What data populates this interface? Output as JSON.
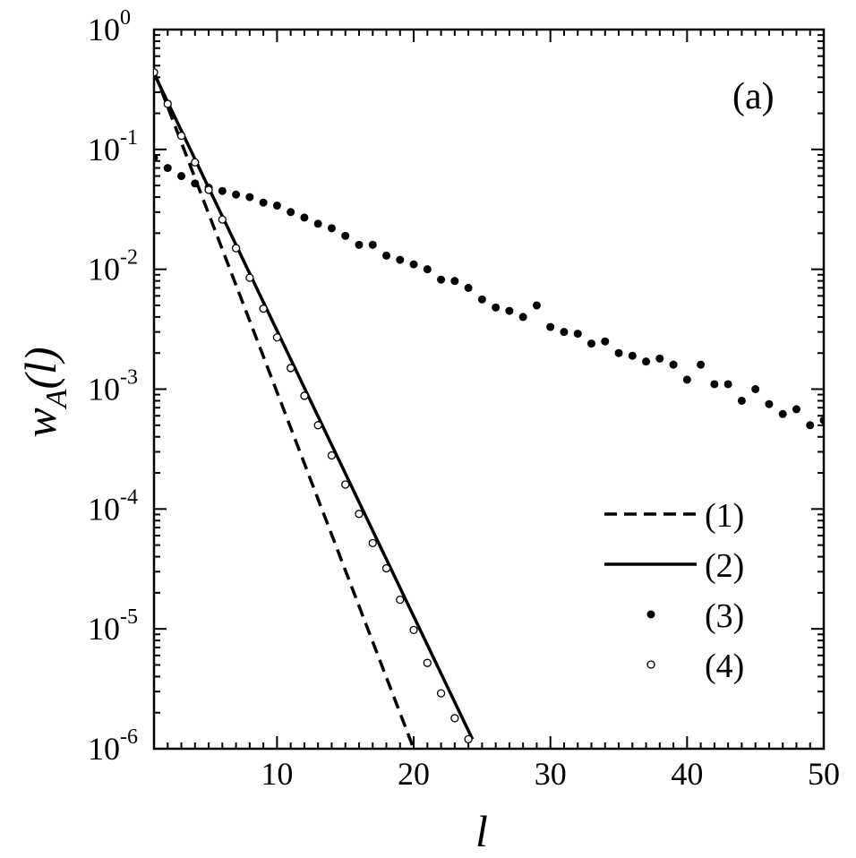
{
  "chart_data": {
    "type": "line",
    "panel_label": "(a)",
    "xlabel": "l",
    "ylabel_main": "w",
    "ylabel_sub": "A",
    "ylabel_arg": "(l)",
    "xlim": [
      1,
      50
    ],
    "ylim": [
      1e-06,
      1
    ],
    "yscale": "log",
    "x_ticks": [
      10,
      20,
      30,
      40,
      50
    ],
    "x_tick_labels": [
      "10",
      "20",
      "30",
      "40",
      "50"
    ],
    "y_ticks": [
      {
        "value": 1.0,
        "base": "10",
        "exp": "0"
      },
      {
        "value": 0.1,
        "base": "10",
        "exp": "-1"
      },
      {
        "value": 0.01,
        "base": "10",
        "exp": "-2"
      },
      {
        "value": 0.001,
        "base": "10",
        "exp": "-3"
      },
      {
        "value": 0.0001,
        "base": "10",
        "exp": "-4"
      },
      {
        "value": 1e-05,
        "base": "10",
        "exp": "-5"
      },
      {
        "value": 1e-06,
        "base": "10",
        "exp": "-6"
      }
    ],
    "grid": false,
    "legend_position": "bottom-right",
    "series": [
      {
        "name": "(1)",
        "style": "dashed-line",
        "color": "#000000",
        "x": [
          1,
          20
        ],
        "y": [
          0.45,
          1e-06
        ]
      },
      {
        "name": "(2)",
        "style": "solid-line",
        "color": "#000000",
        "x": [
          1,
          24.3
        ],
        "y": [
          0.43,
          1.2e-06
        ]
      },
      {
        "name": "(3)",
        "style": "filled-markers",
        "color": "#000000",
        "x": [
          1,
          2,
          3,
          4,
          5,
          6,
          7,
          8,
          9,
          10,
          11,
          12,
          13,
          14,
          15,
          16,
          17,
          18,
          19,
          20,
          21,
          22,
          23,
          24,
          25,
          26,
          27,
          28,
          29,
          30,
          31,
          32,
          33,
          34,
          35,
          36,
          37,
          38,
          39,
          40,
          41,
          42,
          43,
          44,
          45,
          46,
          47,
          48,
          49,
          50
        ],
        "y": [
          0.085,
          0.07,
          0.06,
          0.052,
          0.048,
          0.045,
          0.042,
          0.04,
          0.036,
          0.034,
          0.03,
          0.027,
          0.024,
          0.022,
          0.019,
          0.016,
          0.016,
          0.013,
          0.012,
          0.011,
          0.01,
          0.0082,
          0.008,
          0.007,
          0.0056,
          0.0048,
          0.0045,
          0.004,
          0.005,
          0.0033,
          0.003,
          0.0029,
          0.0024,
          0.0025,
          0.002,
          0.0019,
          0.0017,
          0.0018,
          0.0016,
          0.0012,
          0.0016,
          0.0011,
          0.0011,
          0.0008,
          0.001,
          0.00075,
          0.00062,
          0.00068,
          0.0005,
          0.00055
        ]
      },
      {
        "name": "(4)",
        "style": "open-markers",
        "color": "#000000",
        "x": [
          1,
          2,
          3,
          4,
          5,
          6,
          7,
          8,
          9,
          10,
          11,
          12,
          13,
          14,
          15,
          16,
          17,
          18,
          19,
          20,
          21,
          22,
          23,
          24
        ],
        "y": [
          0.44,
          0.24,
          0.13,
          0.078,
          0.046,
          0.026,
          0.015,
          0.0085,
          0.0047,
          0.0027,
          0.0015,
          0.00088,
          0.0005,
          0.00028,
          0.00016,
          9.1e-05,
          5.2e-05,
          3.2e-05,
          1.75e-05,
          9.8e-06,
          5.2e-06,
          2.9e-06,
          1.8e-06,
          1.2e-06
        ]
      }
    ]
  }
}
